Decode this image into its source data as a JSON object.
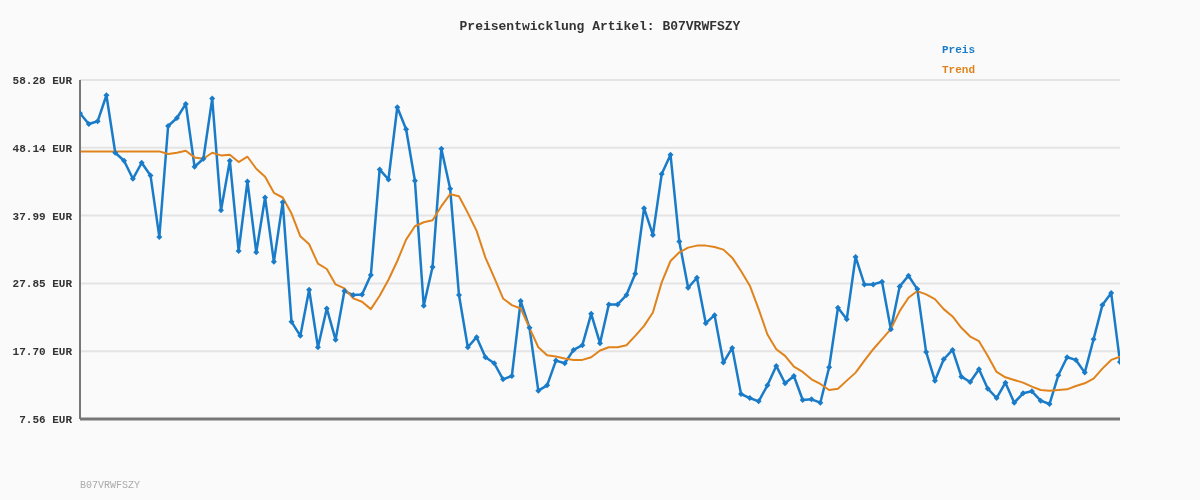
{
  "chart_data": {
    "type": "line",
    "title": "Preisentwicklung Artikel: B07VRWFSZY",
    "categories": [
      null,
      null,
      null,
      null,
      null,
      null,
      null,
      null,
      null,
      null,
      null,
      null,
      null,
      null,
      null,
      null,
      null,
      null,
      null,
      null,
      null,
      null,
      null,
      null,
      null,
      null,
      null,
      null,
      null,
      null,
      null,
      null,
      null,
      null,
      null,
      null,
      null,
      null,
      null,
      null,
      null,
      null,
      null,
      null,
      null,
      null,
      null,
      null,
      null,
      null,
      null,
      null,
      null,
      null,
      null,
      null,
      null,
      null,
      null,
      null,
      null,
      null,
      null,
      null,
      null,
      null,
      null,
      null,
      null,
      null,
      null,
      null,
      null,
      null,
      null,
      null,
      null,
      null,
      null,
      null,
      null,
      null,
      null,
      null,
      null,
      null,
      null,
      null,
      null,
      null,
      null,
      null,
      null,
      null,
      null,
      null,
      null,
      null,
      null,
      null,
      null,
      null,
      null,
      null,
      null,
      null,
      null,
      null,
      null,
      null,
      null,
      null,
      null,
      null,
      null,
      null,
      null,
      null,
      null
    ],
    "series": [
      {
        "name": "Preis",
        "color": "#1a7cc8",
        "marker": "diamond",
        "values": [
          53.3,
          51.7,
          52.1,
          56.0,
          47.4,
          46.2,
          43.5,
          45.9,
          44.0,
          34.8,
          51.4,
          52.6,
          54.7,
          45.3,
          46.5,
          55.5,
          38.8,
          46.2,
          32.7,
          43.1,
          32.5,
          40.7,
          31.1,
          40.0,
          22.1,
          20.0,
          26.9,
          18.3,
          24.1,
          19.4,
          26.7,
          26.1,
          26.2,
          29.1,
          44.9,
          43.4,
          54.2,
          50.9,
          43.2,
          24.5,
          30.3,
          48.0,
          42.0,
          26.1,
          18.3,
          19.8,
          16.8,
          15.9,
          13.5,
          14.0,
          25.2,
          21.2,
          11.8,
          12.6,
          16.3,
          15.9,
          17.9,
          18.6,
          23.3,
          18.9,
          24.7,
          24.7,
          26.1,
          29.3,
          39.1,
          35.1,
          44.2,
          47.1,
          34.1,
          27.2,
          28.7,
          21.9,
          23.1,
          16.0,
          18.2,
          11.3,
          10.7,
          10.2,
          12.6,
          15.5,
          12.9,
          14.0,
          10.4,
          10.5,
          10.0,
          15.3,
          24.2,
          22.5,
          31.8,
          27.7,
          27.7,
          28.1,
          21.0,
          27.4,
          29.0,
          27.0,
          17.6,
          13.3,
          16.5,
          17.9,
          13.9,
          13.1,
          15.0,
          12.1,
          10.7,
          13.0,
          10.0,
          11.4,
          11.7,
          10.3,
          9.8,
          14.1,
          16.8,
          16.4,
          14.5,
          19.5,
          24.6,
          26.4,
          16.1
        ]
      },
      {
        "name": "Trend",
        "color": "#e0831c",
        "marker": "none",
        "values": [
          47.6,
          47.6,
          47.6,
          47.6,
          47.6,
          47.6,
          47.6,
          47.6,
          47.6,
          47.6,
          47.2,
          47.4,
          47.7,
          46.7,
          46.5,
          47.4,
          47.0,
          47.1,
          46.0,
          46.8,
          45.0,
          43.8,
          41.4,
          40.7,
          38.3,
          34.9,
          33.7,
          30.8,
          30.0,
          27.7,
          27.1,
          25.6,
          25.1,
          24.0,
          26.0,
          28.4,
          31.2,
          34.4,
          36.4,
          37.0,
          37.3,
          39.4,
          41.2,
          40.9,
          38.4,
          35.7,
          31.7,
          28.7,
          25.6,
          24.6,
          24.1,
          21.2,
          18.3,
          17.1,
          16.9,
          16.6,
          16.4,
          16.4,
          16.8,
          17.8,
          18.3,
          18.3,
          18.6,
          20.0,
          21.5,
          23.5,
          28.0,
          31.2,
          32.5,
          33.2,
          33.5,
          33.5,
          33.3,
          32.9,
          31.7,
          29.7,
          27.5,
          24.0,
          20.2,
          18.0,
          17.0,
          15.4,
          14.6,
          13.5,
          12.8,
          11.9,
          12.1,
          13.3,
          14.5,
          16.3,
          18.0,
          19.5,
          21.0,
          23.7,
          25.7,
          26.7,
          26.2,
          25.5,
          24.0,
          22.9,
          21.2,
          19.9,
          19.2,
          17.0,
          14.6,
          13.8,
          13.4,
          13.0,
          12.4,
          11.9,
          11.8,
          11.9,
          12.0,
          12.5,
          12.9,
          13.6,
          15.1,
          16.4,
          16.9
        ]
      }
    ],
    "ylim": [
      7.56,
      58.28
    ],
    "yticks": [
      {
        "value": 7.56,
        "label": "7.56 EUR"
      },
      {
        "value": 17.7,
        "label": "17.70 EUR"
      },
      {
        "value": 27.85,
        "label": "27.85 EUR"
      },
      {
        "value": 37.99,
        "label": "37.99 EUR"
      },
      {
        "value": 48.14,
        "label": "48.14 EUR"
      },
      {
        "value": 58.28,
        "label": "58.28 EUR"
      }
    ],
    "grid": "y",
    "legend": "top right",
    "annotations": [
      "B07VRWFSZY"
    ]
  }
}
